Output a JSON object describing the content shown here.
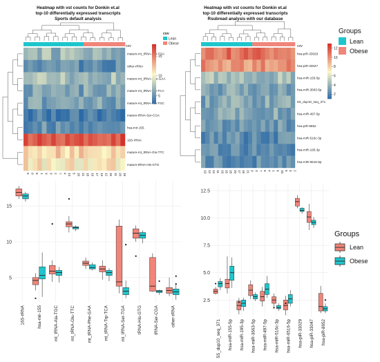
{
  "colors": {
    "lean": "#1ec6cc",
    "obese": "#f0857a",
    "heat_low": "#2c6aa6",
    "heat_mid": "#fbf7c6",
    "heat_high": "#d4332c",
    "dendro": "#555555",
    "grid": "#e9e9e9",
    "cov_swatch_lean": "#1ec6cc",
    "cov_swatch_obese": "#f0857a"
  },
  "heatmap_left": {
    "title": [
      "Heatmap with vst counts for Donkin et.al",
      "top-10 differentially expressed transcripts",
      "Sports default analysis"
    ],
    "cov_label": "cov",
    "legend_title": "cov",
    "legend_items": [
      "Lean",
      "Obese"
    ],
    "colorbar_ticks": [
      "15",
      "10",
      "5"
    ],
    "row_labels": [
      "mature-mt_tRNA-Ser-TGA",
      "other-rRNA",
      "mature-mt_tRNA-Phe-GAA",
      "mature-mt_tRNA-Trp-TCA",
      "mature-mt_tRNA-Ala-TGC",
      "mature-tRNA-Ser-CGA",
      "hsa-mir-155",
      "16S-rRNA",
      "mature-mt_tRNA-Glu-TTC",
      "mature-tRNA-His-GTG"
    ],
    "col_labels": [
      "6",
      "0",
      "8",
      "1",
      "9",
      "3",
      "2",
      "7",
      "4",
      "14",
      "5",
      "10",
      "21",
      "18",
      "19",
      "17",
      "13",
      "12",
      "15",
      "11",
      "20",
      "16"
    ]
  },
  "heatmap_right": {
    "title": [
      "Heatmap with vst counts for Donkin et.al",
      "top-10 differentially expressed transcripts",
      "Rsubread analysis with our database"
    ],
    "cov_label": "cov",
    "colorbar_ticks": [
      "12",
      "10",
      "8",
      "6",
      "4",
      "2"
    ],
    "row_labels": [
      "hsa-piR-33029",
      "hsa-piR-33047",
      "hsa-miR-155-5p",
      "hsa-miR-3663-5p",
      "5S_dup10_seq_371",
      "hsa-miR-497-5p",
      "hsa-piR-8652",
      "hsa-miR-516c-3p",
      "hsa-miR-195-3p",
      "hsa-miR-6516-5p"
    ],
    "col_labels": [
      "13",
      "12",
      "14",
      "11",
      "19",
      "15",
      "18",
      "20",
      "17",
      "16",
      "21",
      "9",
      "3",
      "7",
      "6",
      "4",
      "1",
      "8",
      "10",
      "5",
      "0",
      "2"
    ]
  },
  "groups_legend": {
    "title": "Groups",
    "items": [
      "Lean",
      "Obese"
    ]
  },
  "boxplot_groups_legend": {
    "title": "Groups",
    "items": [
      "Lean",
      "Obese"
    ]
  },
  "chart_data": [
    {
      "type": "heatmap",
      "title": "Heatmap with vst counts for Donkin et.al / top-10 differentially expressed transcripts / Sports default analysis",
      "rows": [
        "mature-mt_tRNA-Ser-TGA",
        "other-rRNA",
        "mature-mt_tRNA-Phe-GAA",
        "mature-mt_tRNA-Trp-TCA",
        "mature-mt_tRNA-Ala-TGC",
        "mature-tRNA-Ser-CGA",
        "hsa-mir-155",
        "16S-rRNA",
        "mature-mt_tRNA-Glu-TTC",
        "mature-tRNA-His-GTG"
      ],
      "row_means": [
        7,
        5,
        7.5,
        6,
        6,
        4,
        5,
        17,
        12,
        11
      ],
      "colorbar_range": [
        3,
        18
      ],
      "cov": [
        "Lean",
        "Lean",
        "Lean",
        "Lean",
        "Lean",
        "Lean",
        "Lean",
        "Lean",
        "Lean",
        "Lean",
        "Lean",
        "Lean",
        "Lean",
        "Obese",
        "Obese",
        "Obese",
        "Obese",
        "Obese",
        "Obese",
        "Obese",
        "Obese",
        "Obese"
      ]
    },
    {
      "type": "heatmap",
      "title": "Heatmap with vst counts for Donkin et.al / top-10 differentially expressed transcripts / Rsubread analysis with our database",
      "rows": [
        "hsa-piR-33029",
        "hsa-piR-33047",
        "hsa-miR-155-5p",
        "hsa-miR-3663-5p",
        "5S_dup10_seq_371",
        "hsa-miR-497-5p",
        "hsa-piR-8652",
        "hsa-miR-516c-3p",
        "hsa-miR-195-3p",
        "hsa-miR-6516-5p"
      ],
      "row_means": [
        11,
        10,
        4.5,
        3.5,
        3.5,
        3.5,
        3,
        2.5,
        2.5,
        2.5
      ],
      "colorbar_range": [
        1,
        13
      ],
      "cov": [
        "Lean",
        "Lean",
        "Lean",
        "Lean",
        "Lean",
        "Lean",
        "Lean",
        "Lean",
        "Lean",
        "Lean",
        "Lean",
        "Lean",
        "Obese",
        "Obese",
        "Obese",
        "Obese",
        "Obese",
        "Obese",
        "Obese",
        "Obese",
        "Obese",
        "Obese"
      ]
    },
    {
      "type": "box",
      "categories": [
        "16S-rRNA",
        "hsa-mir-155",
        "mt_tRNA-Ala-TGC",
        "mt_tRNA-Glu-TTC",
        "mt_tRNA-Phe-GAA",
        "mt_tRNA-Trp-TCA",
        "mt_tRNA-Ser-TGA",
        "tRNA-His-GTG",
        "tRNA-Ser-CGA",
        "other-rRNA"
      ],
      "y_ticks": [
        5,
        10,
        15
      ],
      "ylim": [
        1.5,
        18.5
      ],
      "series": [
        {
          "name": "Lean",
          "boxes": [
            {
              "min": 16.0,
              "q1": 16.4,
              "median": 16.9,
              "q3": 17.4,
              "max": 17.8
            },
            {
              "min": 3.2,
              "q1": 4.0,
              "median": 4.6,
              "q3": 5.0,
              "max": 5.6
            },
            {
              "min": 4.4,
              "q1": 5.5,
              "median": 5.9,
              "q3": 6.7,
              "max": 7.4
            },
            {
              "min": 11.3,
              "q1": 12.1,
              "median": 12.5,
              "q3": 12.8,
              "max": 13.6
            },
            {
              "min": 6.2,
              "q1": 6.7,
              "median": 7.0,
              "q3": 7.3,
              "max": 7.8
            },
            {
              "min": 4.7,
              "q1": 5.8,
              "median": 6.2,
              "q3": 6.6,
              "max": 7.4
            },
            {
              "min": 2.8,
              "q1": 3.8,
              "median": 4.4,
              "q3": 12.2,
              "max": 13.1
            },
            {
              "min": 10.0,
              "q1": 10.5,
              "median": 11.2,
              "q3": 11.8,
              "max": 12.3
            },
            {
              "min": 3.0,
              "q1": 3.1,
              "median": 3.8,
              "q3": 7.8,
              "max": 8.4
            },
            {
              "min": 2.4,
              "q1": 2.8,
              "median": 3.2,
              "q3": 3.6,
              "max": 5.0
            }
          ]
        },
        {
          "name": "Obese",
          "boxes": [
            {
              "min": 15.6,
              "q1": 16.0,
              "median": 16.4,
              "q3": 16.7,
              "max": 17.0
            },
            {
              "min": 2.3,
              "q1": 4.8,
              "median": 5.3,
              "q3": 6.5,
              "max": 8.5
            },
            {
              "min": 4.3,
              "q1": 5.3,
              "median": 5.7,
              "q3": 6.0,
              "max": 6.5
            },
            {
              "min": 11.5,
              "q1": 11.8,
              "median": 12.0,
              "q3": 12.1,
              "max": 12.3
            },
            {
              "min": 6.0,
              "q1": 6.2,
              "median": 6.4,
              "q3": 6.8,
              "max": 7.1
            },
            {
              "min": 4.5,
              "q1": 5.3,
              "median": 5.7,
              "q3": 6.0,
              "max": 6.3
            },
            {
              "min": 2.1,
              "q1": 2.6,
              "median": 3.1,
              "q3": 3.6,
              "max": 4.6
            },
            {
              "min": 9.8,
              "q1": 10.5,
              "median": 10.9,
              "q3": 11.3,
              "max": 11.6
            },
            {
              "min": 2.6,
              "q1": 2.9,
              "median": 3.1,
              "q3": 3.2,
              "max": 3.3
            },
            {
              "min": 1.9,
              "q1": 2.6,
              "median": 3.0,
              "q3": 3.4,
              "max": 4.0
            }
          ]
        }
      ],
      "outliers": [
        {
          "category": "hsa-mir-155",
          "series": "Lean",
          "values": [
            2.1
          ]
        },
        {
          "category": "mt_tRNA-Ala-TGC",
          "series": "Lean",
          "values": [
            12.5
          ]
        },
        {
          "category": "mt_tRNA-Glu-TTC",
          "series": "Lean",
          "values": [
            16.0
          ]
        },
        {
          "category": "mt_tRNA-Ser-TGA",
          "series": "Obese",
          "values": [
            9.6
          ]
        },
        {
          "category": "tRNA-His-GTG",
          "series": "Lean",
          "values": [
            8.0
          ]
        },
        {
          "category": "tRNA-Ser-CGA",
          "series": "Obese",
          "values": [
            4.5
          ]
        },
        {
          "category": "other-rRNA",
          "series": "Obese",
          "values": [
            5.2,
            4.1
          ]
        }
      ]
    },
    {
      "type": "box",
      "categories": [
        "5S_dup10_seq_371",
        "hsa-miR-155-5p",
        "hsa-miR-195-3p",
        "hsa-miR-3663-5p",
        "hsa-miR-497-5p",
        "hsa-miR-516c-3p",
        "hsa-miR-6516-5p",
        "hsa-piR-33029",
        "hsa-piR-33047",
        "hsa-piR-8652"
      ],
      "y_ticks": [
        2.5,
        5.0,
        7.5,
        10.0,
        12.5
      ],
      "ylim": [
        1.0,
        13.2
      ],
      "series": [
        {
          "name": "Lean",
          "boxes": [
            {
              "min": 3.0,
              "q1": 3.1,
              "median": 3.3,
              "q3": 3.5,
              "max": 3.7
            },
            {
              "min": 3.1,
              "q1": 3.6,
              "median": 4.0,
              "q3": 4.4,
              "max": 6.5
            },
            {
              "min": 1.2,
              "q1": 1.6,
              "median": 2.0,
              "q3": 2.4,
              "max": 2.7
            },
            {
              "min": 2.6,
              "q1": 2.9,
              "median": 3.4,
              "q3": 3.9,
              "max": 4.3
            },
            {
              "min": 1.9,
              "q1": 2.4,
              "median": 2.8,
              "q3": 3.3,
              "max": 3.7
            },
            {
              "min": 1.9,
              "q1": 2.2,
              "median": 2.5,
              "q3": 2.8,
              "max": 3.1
            },
            {
              "min": 1.1,
              "q1": 1.6,
              "median": 2.0,
              "q3": 2.5,
              "max": 2.9
            },
            {
              "min": 10.9,
              "q1": 11.1,
              "median": 11.5,
              "q3": 11.8,
              "max": 12.1
            },
            {
              "min": 8.9,
              "q1": 9.6,
              "median": 10.1,
              "q3": 10.6,
              "max": 11.3
            },
            {
              "min": 1.3,
              "q1": 1.5,
              "median": 1.9,
              "q3": 3.1,
              "max": 3.8
            }
          ]
        },
        {
          "name": "Obese",
          "boxes": [
            {
              "min": 3.4,
              "q1": 3.7,
              "median": 4.0,
              "q3": 4.2,
              "max": 4.5
            },
            {
              "min": 3.6,
              "q1": 4.3,
              "median": 5.0,
              "q3": 5.6,
              "max": 6.4
            },
            {
              "min": 1.5,
              "q1": 1.9,
              "median": 2.2,
              "q3": 2.5,
              "max": 2.7
            },
            {
              "min": 2.4,
              "q1": 2.6,
              "median": 2.8,
              "q3": 3.0,
              "max": 3.2
            },
            {
              "min": 2.7,
              "q1": 3.0,
              "median": 3.5,
              "q3": 4.0,
              "max": 4.7
            },
            {
              "min": 1.5,
              "q1": 1.7,
              "median": 1.8,
              "q3": 2.0,
              "max": 2.2
            },
            {
              "min": 1.9,
              "q1": 2.2,
              "median": 2.6,
              "q3": 3.0,
              "max": 3.4
            },
            {
              "min": 10.4,
              "q1": 10.6,
              "median": 10.7,
              "q3": 10.9,
              "max": 11.0
            },
            {
              "min": 9.1,
              "q1": 9.4,
              "median": 9.6,
              "q3": 9.8,
              "max": 10.1
            },
            {
              "min": 1.3,
              "q1": 1.5,
              "median": 1.7,
              "q3": 1.9,
              "max": 2.2
            }
          ]
        }
      ],
      "outliers": [
        {
          "category": "5S_dup10_seq_371",
          "series": "Lean",
          "values": [
            4.0
          ]
        },
        {
          "category": "hsa-miR-516c-3p",
          "series": "Lean",
          "values": [
            1.8
          ]
        },
        {
          "category": "hsa-miR-195-3p",
          "series": "Lean",
          "values": [
            2.3
          ]
        },
        {
          "category": "hsa-miR-6516-5p",
          "series": "Lean",
          "values": [
            2.2
          ]
        },
        {
          "category": "hsa-piR-8652",
          "series": "Obese",
          "values": [
            2.5
          ]
        }
      ]
    }
  ]
}
